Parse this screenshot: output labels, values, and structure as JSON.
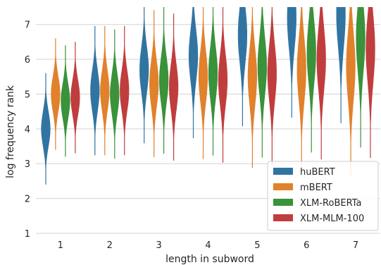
{
  "chart_data": {
    "type": "violin",
    "xlabel": "length in subword",
    "ylabel": "log frequency rank",
    "categories": [
      "1",
      "2",
      "3",
      "4",
      "5",
      "6",
      "7"
    ],
    "ylim": [
      1,
      7.5
    ],
    "yticks": [
      "1",
      "2",
      "3",
      "4",
      "5",
      "6",
      "7"
    ],
    "grid": true,
    "legend_position": "bottom-right",
    "series": [
      {
        "name": "huBERT",
        "color": "#3274a1",
        "medians": [
          4.0,
          5.1,
          5.7,
          6.1,
          6.7,
          7.2,
          7.3
        ]
      },
      {
        "name": "mBERT",
        "color": "#e1812c",
        "medians": [
          5.0,
          5.1,
          5.3,
          5.5,
          5.5,
          5.7,
          5.8
        ]
      },
      {
        "name": "XLM-RoBERTa",
        "color": "#3a923a",
        "medians": [
          4.8,
          5.0,
          5.4,
          5.6,
          5.8,
          6.2,
          6.6
        ]
      },
      {
        "name": "XLM-MLM-100",
        "color": "#c03d3e",
        "medians": [
          4.9,
          5.1,
          5.2,
          5.4,
          5.6,
          6.0,
          6.3
        ]
      }
    ]
  }
}
